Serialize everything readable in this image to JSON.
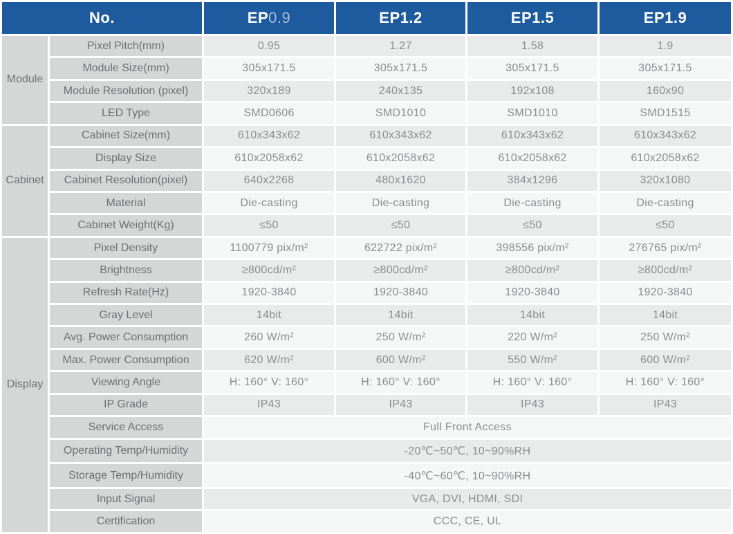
{
  "table": {
    "corner_label": "No.",
    "product_columns": [
      {
        "label": "EP0.9",
        "prefix": "EP",
        "number": "0.9"
      },
      {
        "label": "EP1.2",
        "prefix": "EP",
        "number": "1.2"
      },
      {
        "label": "EP1.5",
        "prefix": "EP",
        "number": "1.5"
      },
      {
        "label": "EP1.9",
        "prefix": "EP",
        "number": "1.9"
      }
    ],
    "groups": [
      {
        "label": "Module",
        "rows": [
          {
            "label": "Pixel Pitch(mm)",
            "values": [
              "0.95",
              "1.27",
              "1.58",
              "1.9"
            ]
          },
          {
            "label": "Module Size(mm)",
            "values": [
              "305x171.5",
              "305x171.5",
              "305x171.5",
              "305x171.5"
            ]
          },
          {
            "label": "Module Resolution (pixel)",
            "values": [
              "320x189",
              "240x135",
              "192x108",
              "160x90"
            ]
          },
          {
            "label": "LED Type",
            "values": [
              "SMD0606",
              "SMD1010",
              "SMD1010",
              "SMD1515"
            ]
          }
        ]
      },
      {
        "label": "Cabinet",
        "rows": [
          {
            "label": "Cabinet Size(mm)",
            "values": [
              "610x343x62",
              "610x343x62",
              "610x343x62",
              "610x343x62"
            ]
          },
          {
            "label": "Display Size",
            "values": [
              "610x2058x62",
              "610x2058x62",
              "610x2058x62",
              "610x2058x62"
            ]
          },
          {
            "label": "Cabinet Resolution(pixel)",
            "values": [
              "640x2268",
              "480x1620",
              "384x1296",
              "320x1080"
            ]
          },
          {
            "label": "Material",
            "values": [
              "Die-casting",
              "Die-casting",
              "Die-casting",
              "Die-casting"
            ]
          },
          {
            "label": "Cabinet Weight(Kg)",
            "values": [
              "≤50",
              "≤50",
              "≤50",
              "≤50"
            ]
          }
        ]
      },
      {
        "label": "Display",
        "rows": [
          {
            "label": "Pixel Density",
            "values": [
              "1100779 pix/m²",
              "622722 pix/m²",
              "398556 pix/m²",
              "276765 pix/m²"
            ]
          },
          {
            "label": "Brightness",
            "values": [
              "≥800cd/m²",
              "≥800cd/m²",
              "≥800cd/m²",
              "≥800cd/m²"
            ]
          },
          {
            "label": "Refresh Rate(Hz)",
            "values": [
              "1920-3840",
              "1920-3840",
              "1920-3840",
              "1920-3840"
            ]
          },
          {
            "label": "Gray Level",
            "values": [
              "14bit",
              "14bit",
              "14bit",
              "14bit"
            ]
          },
          {
            "label": "Avg. Power Consumption",
            "values": [
              "260 W/m²",
              "250 W/m²",
              "220 W/m²",
              "250 W/m²"
            ]
          },
          {
            "label": "Max. Power Consumption",
            "values": [
              "620 W/m²",
              "600 W/m²",
              "550 W/m²",
              "600 W/m²"
            ]
          },
          {
            "label": "Viewing Angle",
            "values": [
              "H: 160°  V: 160°",
              "H: 160°  V: 160°",
              "H: 160°  V: 160°",
              "H: 160°  V: 160°"
            ]
          },
          {
            "label": "IP Grade",
            "values": [
              "IP43",
              "IP43",
              "IP43",
              "IP43"
            ]
          },
          {
            "label": "Service Access",
            "merged_value": "Full Front Access"
          },
          {
            "label": "Operating Temp/Humidity",
            "merged_value": "-20℃~50℃, 10~90%RH"
          },
          {
            "label": "Storage Temp/Humidity",
            "merged_value": "-40℃~60℃, 10~90%RH"
          },
          {
            "label": "Input Signal",
            "merged_value": "VGA, DVI, HDMI, SDI"
          },
          {
            "label": "Certification",
            "merged_value": "CCC, CE, UL"
          }
        ]
      }
    ],
    "colors": {
      "header_bg": "#1e5b9e",
      "header_text": "#ffffff",
      "header_number_muted": "#a7bedd",
      "group_cell_bg": "#d5d6d6",
      "label_cell_bg": "#d5d6d6",
      "row_dark_bg": "#e9eaea",
      "row_light_bg": "#f5f6f6",
      "label_text": "#6e6f71",
      "value_text": "#8b8c8e"
    }
  }
}
